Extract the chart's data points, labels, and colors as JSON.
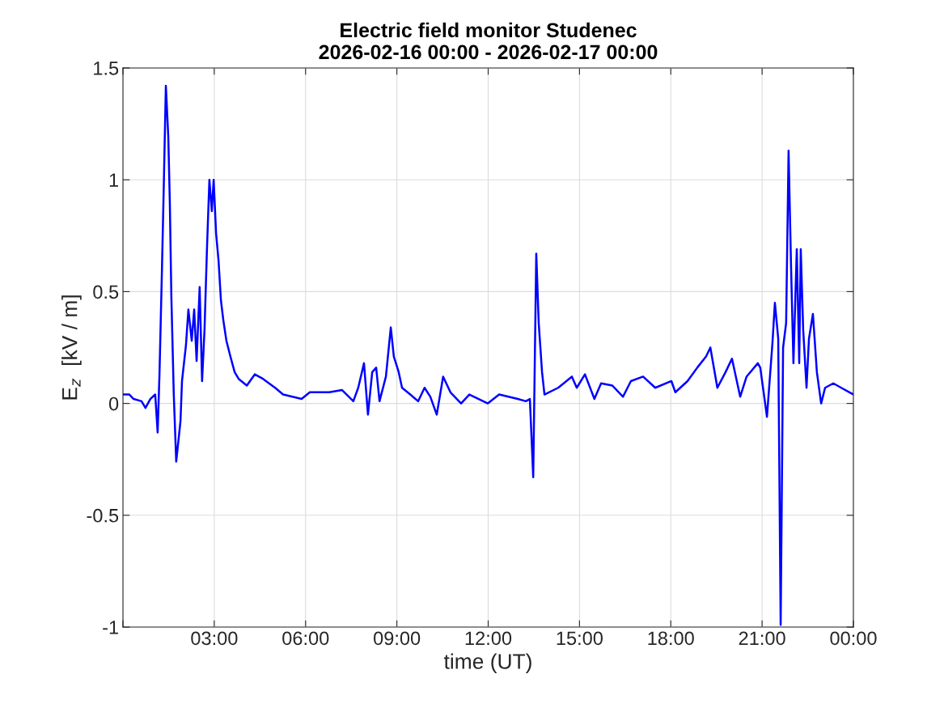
{
  "chart_data": {
    "type": "line",
    "title": "Electric field monitor Studenec\n2026-02-16 00:00 - 2026-02-17 00:00",
    "xlabel": "time (UT)",
    "ylabel": "E$_{z}$  [kV / m]",
    "xlim": [
      0,
      24
    ],
    "xticks": [
      {
        "value": 0,
        "label": null
      },
      {
        "value": 3,
        "label": "03:00"
      },
      {
        "value": 6,
        "label": "06:00"
      },
      {
        "value": 9,
        "label": "09:00"
      },
      {
        "value": 12,
        "label": "12:00"
      },
      {
        "value": 15,
        "label": "15:00"
      },
      {
        "value": 18,
        "label": "18:00"
      },
      {
        "value": 21,
        "label": "21:00"
      },
      {
        "value": 24,
        "label": "00:00"
      }
    ],
    "ylim": [
      -1,
      1.5
    ],
    "yticks": [
      -1,
      -0.5,
      0,
      0.5,
      1,
      1.5
    ],
    "grid": true,
    "legend": false,
    "marker": "none",
    "line_style": "solid",
    "series": [
      {
        "color": "#0000ff",
        "x": [
          0,
          0.21,
          0.35,
          0.61,
          0.74,
          0.9,
          1.06,
          1.14,
          1.2,
          1.28,
          1.33,
          1.41,
          1.49,
          1.54,
          1.59,
          1.67,
          1.75,
          1.89,
          1.94,
          2.07,
          2.15,
          2.26,
          2.34,
          2.42,
          2.52,
          2.6,
          2.68,
          2.76,
          2.84,
          2.92,
          2.98,
          3.06,
          3.14,
          3.22,
          3.3,
          3.4,
          3.53,
          3.67,
          3.8,
          4.07,
          4.33,
          4.6,
          5.0,
          5.26,
          5.87,
          6.14,
          6.78,
          7.2,
          7.57,
          7.73,
          7.92,
          8.05,
          8.19,
          8.32,
          8.43,
          8.64,
          8.8,
          8.9,
          9.06,
          9.17,
          9.44,
          9.7,
          9.91,
          10.1,
          10.31,
          10.52,
          10.76,
          11.11,
          11.38,
          11.99,
          12.36,
          12.97,
          13.24,
          13.37,
          13.48,
          13.58,
          13.66,
          13.77,
          13.85,
          14.3,
          14.75,
          14.91,
          15.18,
          15.49,
          15.71,
          16.08,
          16.43,
          16.69,
          17.09,
          17.49,
          18.02,
          18.15,
          18.55,
          18.87,
          19.16,
          19.3,
          19.53,
          19.8,
          20.01,
          20.28,
          20.49,
          20.86,
          20.94,
          21.16,
          21.34,
          21.42,
          21.53,
          21.61,
          21.69,
          21.79,
          21.87,
          21.95,
          22.03,
          22.14,
          22.22,
          22.27,
          22.35,
          22.46,
          22.54,
          22.67,
          22.8,
          22.94,
          23.07,
          23.34,
          23.6,
          23.87,
          24.0
        ],
        "values": [
          0.04,
          0.04,
          0.02,
          0.01,
          -0.02,
          0.02,
          0.04,
          -0.13,
          0.13,
          0.59,
          0.9,
          1.42,
          1.19,
          0.9,
          0.48,
          0.04,
          -0.26,
          -0.08,
          0.1,
          0.26,
          0.42,
          0.28,
          0.42,
          0.19,
          0.52,
          0.1,
          0.33,
          0.69,
          1.0,
          0.86,
          1.0,
          0.76,
          0.64,
          0.46,
          0.37,
          0.28,
          0.21,
          0.14,
          0.11,
          0.08,
          0.13,
          0.11,
          0.07,
          0.04,
          0.02,
          0.05,
          0.05,
          0.06,
          0.01,
          0.07,
          0.18,
          -0.05,
          0.14,
          0.16,
          0.01,
          0.12,
          0.34,
          0.21,
          0.14,
          0.07,
          0.04,
          0.01,
          0.07,
          0.03,
          -0.05,
          0.12,
          0.05,
          0.0,
          0.04,
          0.0,
          0.04,
          0.02,
          0.01,
          0.02,
          -0.33,
          0.67,
          0.36,
          0.14,
          0.04,
          0.07,
          0.12,
          0.07,
          0.13,
          0.02,
          0.09,
          0.08,
          0.03,
          0.1,
          0.12,
          0.07,
          0.1,
          0.05,
          0.1,
          0.16,
          0.21,
          0.25,
          0.07,
          0.14,
          0.2,
          0.03,
          0.12,
          0.18,
          0.16,
          -0.06,
          0.27,
          0.45,
          0.29,
          -0.99,
          0.25,
          0.36,
          1.13,
          0.62,
          0.18,
          0.69,
          0.18,
          0.69,
          0.33,
          0.07,
          0.29,
          0.4,
          0.14,
          0.0,
          0.07,
          0.09,
          0.07,
          0.05,
          0.04
        ]
      }
    ]
  }
}
